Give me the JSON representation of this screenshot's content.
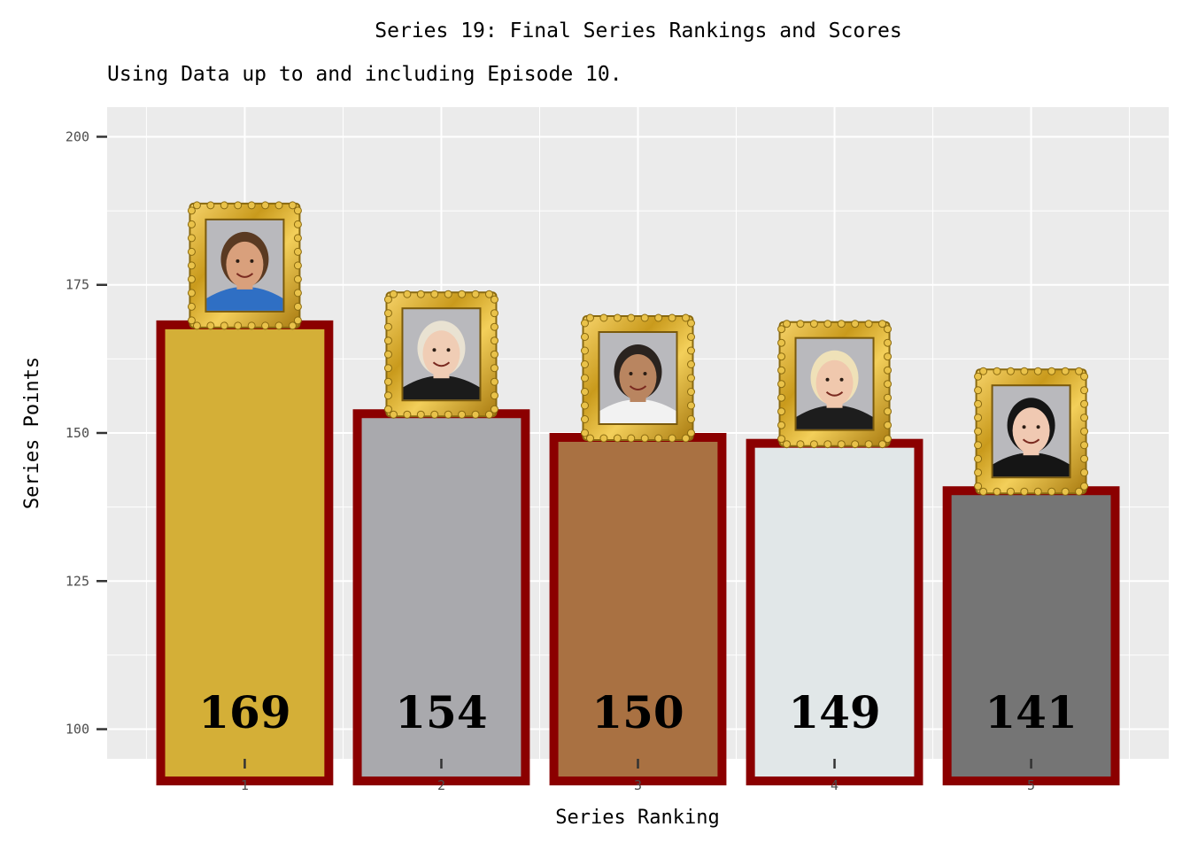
{
  "chart_data": {
    "type": "bar",
    "title": "Series 19: Final Series Rankings and Scores",
    "subtitle": "Using Data up to and including Episode 10.",
    "xlabel": "Series Ranking",
    "ylabel": "Series Points",
    "categories": [
      "1",
      "2",
      "3",
      "4",
      "5"
    ],
    "values": [
      169,
      154,
      150,
      149,
      141
    ],
    "bar_labels": [
      "169",
      "154",
      "150",
      "149",
      "141"
    ],
    "ylim": [
      95,
      205
    ],
    "yticks": [
      100,
      125,
      150,
      175,
      200
    ],
    "ytick_labels": [
      "100",
      "125",
      "150",
      "175",
      "200"
    ],
    "grid": true,
    "bar_colors": [
      "#d4af37",
      "#a9a9ad",
      "#a97142",
      "#e1e7e8",
      "#757575"
    ],
    "bar_outline_color": "#8b0000",
    "panel_background": "#ebebeb",
    "portrait_frames": true,
    "portraits": [
      {
        "icon": "portrait-1",
        "skin": "#d9a07c",
        "hair": "#5a3a22",
        "shirt": "#2f6fc4",
        "bg": "#b9b9bd"
      },
      {
        "icon": "portrait-2",
        "skin": "#f0cdb5",
        "hair": "#e9e2d2",
        "shirt": "#1b1b1b",
        "bg": "#b9b9bd"
      },
      {
        "icon": "portrait-3",
        "skin": "#b98560",
        "hair": "#2a231f",
        "shirt": "#f2f2f2",
        "bg": "#b9b9bd"
      },
      {
        "icon": "portrait-4",
        "skin": "#f0c8ad",
        "hair": "#efe1b8",
        "shirt": "#1d1d1d",
        "bg": "#b9b9bd"
      },
      {
        "icon": "portrait-5",
        "skin": "#f0c9b2",
        "hair": "#151515",
        "shirt": "#151515",
        "bg": "#b9b9bd"
      }
    ]
  }
}
